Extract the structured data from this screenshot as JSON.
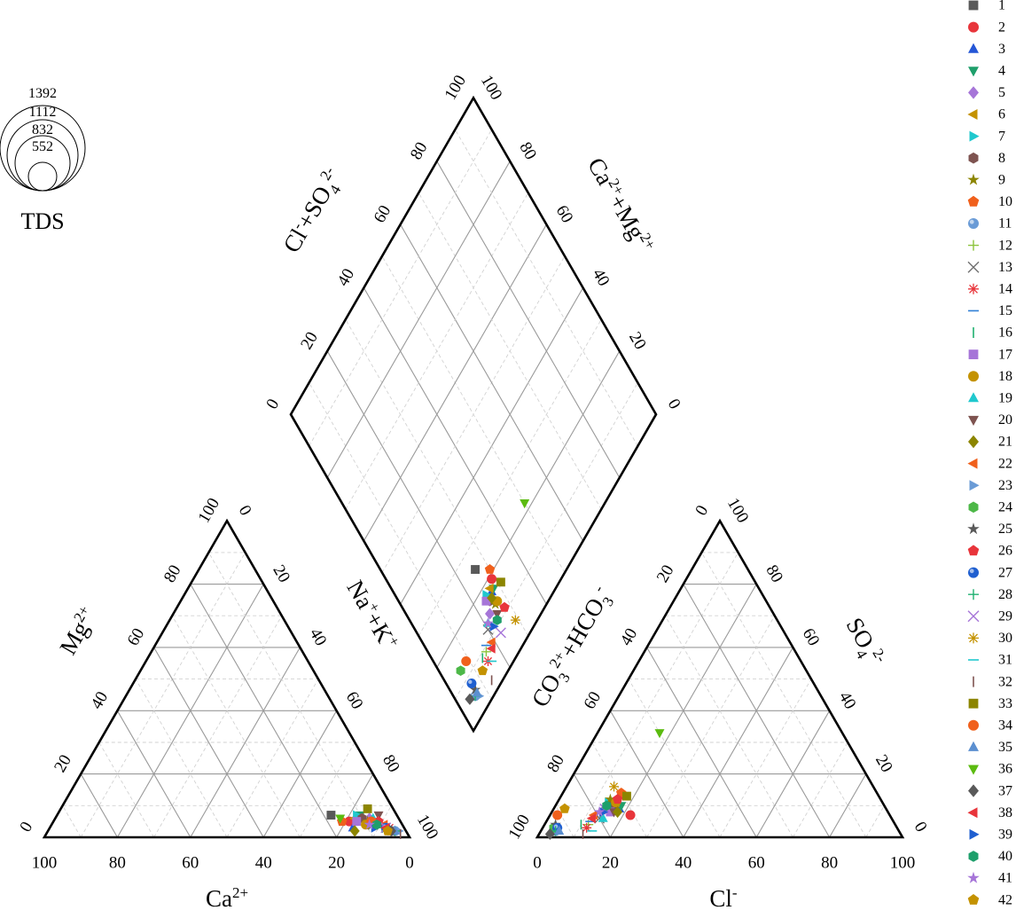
{
  "chart_data": {
    "type": "scatter",
    "subtype": "piper-diagram",
    "tds_legend": {
      "title": "TDS",
      "values": [
        "1392",
        "1112",
        "832",
        "552"
      ]
    },
    "axis_labels": {
      "cation_bottom": [
        "Ca",
        "2+"
      ],
      "cation_left": [
        "Mg",
        "2+"
      ],
      "cation_right": [
        "Na",
        "+",
        "+K",
        "+"
      ],
      "anion_bottom": [
        "Cl",
        "-"
      ],
      "anion_left": [
        "CO",
        "3",
        "2+",
        "+HCO",
        "3",
        "-"
      ],
      "anion_right": [
        "SO",
        "4",
        "2-"
      ],
      "diamond_left": [
        "Cl",
        "-",
        "+SO",
        "4",
        "2-"
      ],
      "diamond_right": [
        "Ca",
        "2+",
        "+Mg",
        "2+"
      ]
    },
    "tick_labels": {
      "bottom": [
        "100",
        "80",
        "60",
        "40",
        "20",
        "0"
      ],
      "bottom_anion": [
        "0",
        "20",
        "40",
        "60",
        "80",
        "100"
      ],
      "side_left": [
        "0",
        "20",
        "40",
        "60",
        "80",
        "100"
      ],
      "side_right": [
        "0",
        "20",
        "40",
        "60",
        "80",
        "100"
      ],
      "diamond": [
        "0",
        "20",
        "40",
        "60",
        "80",
        "100"
      ]
    },
    "series": [
      {
        "name": "1",
        "marker": "square",
        "color": "#595959",
        "cation": {
          "ca": 18,
          "mg": 7,
          "na": 75
        },
        "anion": {
          "cl": 16,
          "so4": 10,
          "hco3": 74
        }
      },
      {
        "name": "2",
        "marker": "circle",
        "color": "#E8353B",
        "cation": {
          "ca": 14,
          "mg": 5,
          "na": 81
        },
        "anion": {
          "cl": 22,
          "so4": 7,
          "hco3": 71
        }
      },
      {
        "name": "3",
        "marker": "triangle-up",
        "color": "#2456D6",
        "cation": {
          "ca": 14,
          "mg": 3,
          "na": 83
        },
        "anion": {
          "cl": 18,
          "so4": 9,
          "hco3": 73
        }
      },
      {
        "name": "4",
        "marker": "triangle-down",
        "color": "#1E9F6B",
        "cation": {
          "ca": 10,
          "mg": 7,
          "na": 83
        },
        "anion": {
          "cl": 18,
          "so4": 10,
          "hco3": 72
        }
      },
      {
        "name": "5",
        "marker": "diamond",
        "color": "#A675D8",
        "cation": {
          "ca": 8,
          "mg": 6,
          "na": 86
        },
        "anion": {
          "cl": 14,
          "so4": 9,
          "hco3": 77
        }
      },
      {
        "name": "6",
        "marker": "triangle-left",
        "color": "#C49200",
        "cation": {
          "ca": 12,
          "mg": 6,
          "na": 82
        },
        "anion": {
          "cl": 16,
          "so4": 11,
          "hco3": 73
        }
      },
      {
        "name": "7",
        "marker": "triangle-right",
        "color": "#20C8CE",
        "cation": {
          "ca": 11,
          "mg": 7,
          "na": 82
        },
        "anion": {
          "cl": 14,
          "so4": 11,
          "hco3": 75
        }
      },
      {
        "name": "8",
        "marker": "hexagon",
        "color": "#7E5350",
        "cation": {
          "ca": 10,
          "mg": 6,
          "na": 84
        },
        "anion": {
          "cl": 15,
          "so4": 10,
          "hco3": 75
        }
      },
      {
        "name": "9",
        "marker": "star",
        "color": "#8C8500",
        "cation": {
          "ca": 9,
          "mg": 5,
          "na": 86
        },
        "anion": {
          "cl": 14,
          "so4": 12,
          "hco3": 74
        }
      },
      {
        "name": "10",
        "marker": "pentagon",
        "color": "#F0601C",
        "cation": {
          "ca": 16,
          "mg": 5,
          "na": 79
        },
        "anion": {
          "cl": 16,
          "so4": 14,
          "hco3": 70
        }
      },
      {
        "name": "11",
        "marker": "sphere",
        "color": "#6A9BD6",
        "cation": {
          "ca": 3,
          "mg": 2,
          "na": 95
        },
        "anion": {
          "cl": 4,
          "so4": 2,
          "hco3": 94
        }
      },
      {
        "name": "12",
        "marker": "plus",
        "color": "#8CC43C",
        "cation": {
          "ca": 6,
          "mg": 3,
          "na": 91
        },
        "anion": {
          "cl": 12,
          "so4": 4,
          "hco3": 84
        }
      },
      {
        "name": "13",
        "marker": "x",
        "color": "#707070",
        "cation": {
          "ca": 8,
          "mg": 4,
          "na": 88
        },
        "anion": {
          "cl": 14,
          "so4": 6,
          "hco3": 80
        }
      },
      {
        "name": "14",
        "marker": "asterisk",
        "color": "#E8353B",
        "cation": {
          "ca": 4,
          "mg": 3,
          "na": 93
        },
        "anion": {
          "cl": 12,
          "so4": 3,
          "hco3": 85
        }
      },
      {
        "name": "15",
        "marker": "hline",
        "color": "#2F7FD6",
        "cation": {
          "ca": 6,
          "mg": 4,
          "na": 90
        },
        "anion": {
          "cl": 12,
          "so4": 5,
          "hco3": 83
        }
      },
      {
        "name": "16",
        "marker": "vline",
        "color": "#1FB070",
        "cation": {
          "ca": 6,
          "mg": 3,
          "na": 91
        },
        "anion": {
          "cl": 10,
          "so4": 4,
          "hco3": 86
        }
      },
      {
        "name": "17",
        "marker": "square",
        "color": "#A675D8",
        "cation": {
          "ca": 12,
          "mg": 5,
          "na": 83
        },
        "anion": {
          "cl": 16,
          "so4": 8,
          "hco3": 76
        }
      },
      {
        "name": "18",
        "marker": "circle",
        "color": "#C49200",
        "cation": {
          "ca": 10,
          "mg": 4,
          "na": 86
        },
        "anion": {
          "cl": 16,
          "so4": 11,
          "hco3": 73
        }
      },
      {
        "name": "19",
        "marker": "triangle-up",
        "color": "#20C8CE",
        "cation": {
          "ca": 7,
          "mg": 6,
          "na": 87
        },
        "anion": {
          "cl": 15,
          "so4": 6,
          "hco3": 79
        }
      },
      {
        "name": "20",
        "marker": "triangle-down",
        "color": "#7E5350",
        "cation": {
          "ca": 5,
          "mg": 7,
          "na": 88
        },
        "anion": {
          "cl": 17,
          "so4": 8,
          "hco3": 75
        }
      },
      {
        "name": "21",
        "marker": "diamond",
        "color": "#8C8500",
        "cation": {
          "ca": 14,
          "mg": 2,
          "na": 84
        },
        "anion": {
          "cl": 18,
          "so4": 8,
          "hco3": 74
        }
      },
      {
        "name": "22",
        "marker": "triangle-left",
        "color": "#F0601C",
        "cation": {
          "ca": 5,
          "mg": 4,
          "na": 91
        },
        "anion": {
          "cl": 12,
          "so4": 7,
          "hco3": 81
        }
      },
      {
        "name": "23",
        "marker": "triangle-right",
        "color": "#6A9BD6",
        "cation": {
          "ca": 2,
          "mg": 2,
          "na": 96
        },
        "anion": {
          "cl": 4,
          "so4": 3,
          "hco3": 93
        }
      },
      {
        "name": "24",
        "marker": "hexagon",
        "color": "#4DB848",
        "cation": {
          "ca": 8,
          "mg": 5,
          "na": 87
        },
        "anion": {
          "cl": 3,
          "so4": 3,
          "hco3": 94
        }
      },
      {
        "name": "25",
        "marker": "star",
        "color": "#595959",
        "cation": {
          "ca": 4,
          "mg": 2,
          "na": 94
        },
        "anion": {
          "cl": 3,
          "so4": 4,
          "hco3": 93
        }
      },
      {
        "name": "26",
        "marker": "pentagon",
        "color": "#E8353B",
        "cation": {
          "ca": 6,
          "mg": 5,
          "na": 89
        },
        "anion": {
          "cl": 16,
          "so4": 12,
          "hco3": 72
        }
      },
      {
        "name": "27",
        "marker": "sphere",
        "color": "#1F5FD0",
        "cation": {
          "ca": 5,
          "mg": 3,
          "na": 92
        },
        "anion": {
          "cl": 4,
          "so4": 3,
          "hco3": 93
        }
      },
      {
        "name": "28",
        "marker": "plus",
        "color": "#1FB070",
        "cation": {
          "ca": 3,
          "mg": 2,
          "na": 95
        },
        "anion": {
          "cl": 4,
          "so4": 2,
          "hco3": 94
        }
      },
      {
        "name": "29",
        "marker": "x",
        "color": "#A675D8",
        "cation": {
          "ca": 5,
          "mg": 3,
          "na": 92
        },
        "anion": {
          "cl": 14,
          "so4": 9,
          "hco3": 77
        }
      },
      {
        "name": "30",
        "marker": "asterisk",
        "color": "#C49200",
        "cation": {
          "ca": 4,
          "mg": 2,
          "na": 94
        },
        "anion": {
          "cl": 13,
          "so4": 16,
          "hco3": 71
        }
      },
      {
        "name": "31",
        "marker": "hline",
        "color": "#20C8CE",
        "cation": {
          "ca": 4,
          "mg": 2,
          "na": 94
        },
        "anion": {
          "cl": 14,
          "so4": 2,
          "hco3": 84
        }
      },
      {
        "name": "32",
        "marker": "vline",
        "color": "#7E5350",
        "cation": {
          "ca": 2,
          "mg": 1,
          "na": 97
        },
        "anion": {
          "cl": 12,
          "so4": 1,
          "hco3": 87
        }
      },
      {
        "name": "33",
        "marker": "square",
        "color": "#8C8500",
        "cation": {
          "ca": 7,
          "mg": 9,
          "na": 84
        },
        "anion": {
          "cl": 18,
          "so4": 13,
          "hco3": 69
        }
      },
      {
        "name": "34",
        "marker": "circle",
        "color": "#F0601C",
        "cation": {
          "ca": 8,
          "mg": 5,
          "na": 87
        },
        "anion": {
          "cl": 2,
          "so4": 7,
          "hco3": 91
        }
      },
      {
        "name": "35",
        "marker": "triangle-up",
        "color": "#5B8FD0",
        "cation": {
          "ca": 3,
          "mg": 2,
          "na": 95
        },
        "anion": {
          "cl": 5,
          "so4": 2,
          "hco3": 93
        }
      },
      {
        "name": "36",
        "marker": "triangle-down",
        "color": "#5BBB10",
        "cation": {
          "ca": 16,
          "mg": 6,
          "na": 78
        },
        "anion": {
          "cl": 17,
          "so4": 33,
          "hco3": 50
        }
      },
      {
        "name": "37",
        "marker": "diamond",
        "color": "#595959",
        "cation": {
          "ca": 4,
          "mg": 2,
          "na": 94
        },
        "anion": {
          "cl": 3,
          "so4": 1,
          "hco3": 96
        }
      },
      {
        "name": "38",
        "marker": "triangle-left",
        "color": "#E8353B",
        "cation": {
          "ca": 5,
          "mg": 3,
          "na": 92
        },
        "anion": {
          "cl": 12,
          "so4": 6,
          "hco3": 82
        }
      },
      {
        "name": "39",
        "marker": "triangle-right",
        "color": "#1F5FD0",
        "cation": {
          "ca": 8,
          "mg": 3,
          "na": 89
        },
        "anion": {
          "cl": 14,
          "so4": 8,
          "hco3": 78
        }
      },
      {
        "name": "40",
        "marker": "hexagon",
        "color": "#1E9F6B",
        "cation": {
          "ca": 7,
          "mg": 4,
          "na": 89
        },
        "anion": {
          "cl": 14,
          "so4": 10,
          "hco3": 76
        }
      },
      {
        "name": "41",
        "marker": "star",
        "color": "#A675D8",
        "cation": {
          "ca": 9,
          "mg": 4,
          "na": 87
        },
        "anion": {
          "cl": 13,
          "so4": 8,
          "hco3": 79
        }
      },
      {
        "name": "42",
        "marker": "pentagon",
        "color": "#C49200",
        "cation": {
          "ca": 5,
          "mg": 2,
          "na": 93
        },
        "anion": {
          "cl": 3,
          "so4": 9,
          "hco3": 88
        }
      }
    ]
  }
}
